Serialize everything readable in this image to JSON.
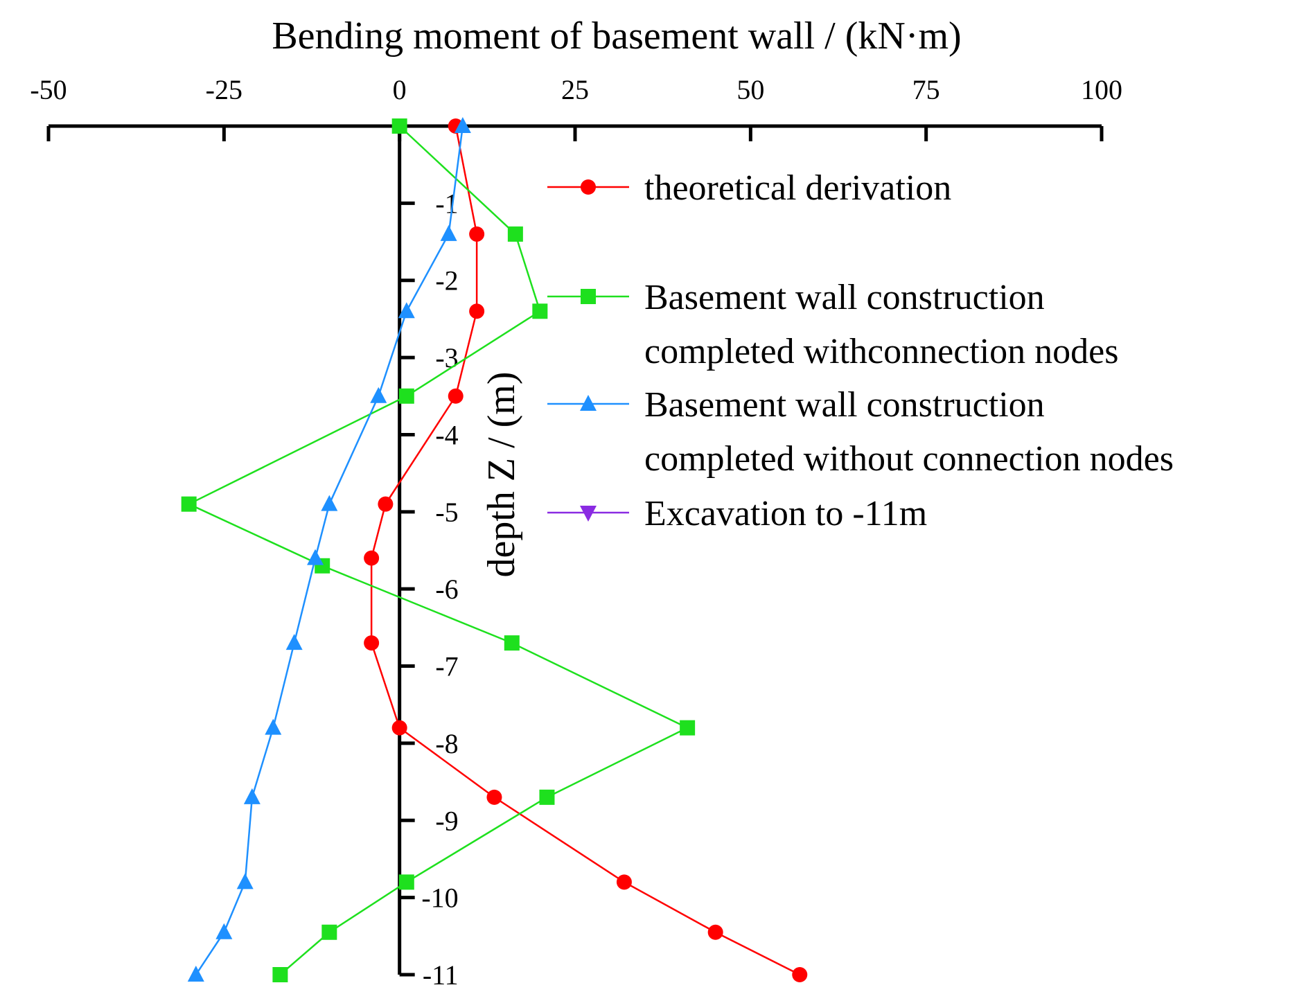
{
  "chart_data": {
    "type": "line",
    "title": "",
    "xlabel": "Bending moment of basement wall / (kN·m)",
    "ylabel": "depth Z / (m)",
    "xlim": [
      -50,
      100
    ],
    "ylim": [
      -11,
      0
    ],
    "x_ticks": [
      "-50",
      "-25",
      "0",
      "25",
      "50",
      "75",
      "100"
    ],
    "x_tick_values": [
      -50,
      -25,
      0,
      25,
      50,
      75,
      100
    ],
    "y_ticks": [
      "-1",
      "-2",
      "-3",
      "-4",
      "-5",
      "-6",
      "-7",
      "-8",
      "-9",
      "-10",
      "-11"
    ],
    "y_tick_values": [
      -1,
      -2,
      -3,
      -4,
      -5,
      -6,
      -7,
      -8,
      -9,
      -10,
      -11
    ],
    "x_axis_position": "top",
    "grid": false,
    "legend_position": "top-right",
    "series": [
      {
        "name": "theoretical derivation",
        "color": "#ff0000",
        "marker": "circle",
        "x": [
          8,
          11,
          11,
          8,
          -2,
          -4,
          -4,
          0,
          13.5,
          32,
          45,
          57
        ],
        "y": [
          0,
          -1.4,
          -2.4,
          -3.5,
          -4.9,
          -5.6,
          -6.7,
          -7.8,
          -8.7,
          -9.8,
          -10.45,
          -11
        ]
      },
      {
        "name": "Basement wall construction completed withconnection nodes",
        "color": "#1ee01e",
        "marker": "square",
        "x": [
          0,
          16.5,
          20,
          1,
          -30,
          -11,
          16,
          41,
          21,
          1,
          -10,
          -17
        ],
        "y": [
          0,
          -1.4,
          -2.4,
          -3.5,
          -4.9,
          -5.7,
          -6.7,
          -7.8,
          -8.7,
          -9.8,
          -10.45,
          -11
        ]
      },
      {
        "name": "Basement wall construction completed without connection nodes",
        "color": "#1e90ff",
        "marker": "triangle-up",
        "x": [
          9,
          7,
          1,
          -3,
          -10,
          -12,
          -15,
          -18,
          -21,
          -22,
          -25,
          -29
        ],
        "y": [
          0,
          -1.4,
          -2.4,
          -3.5,
          -4.9,
          -5.6,
          -6.7,
          -7.8,
          -8.7,
          -9.8,
          -10.45,
          -11
        ]
      },
      {
        "name": "Excavation to -11m",
        "color": "#8a2be2",
        "marker": "triangle-down",
        "x": [],
        "y": []
      }
    ],
    "legend_lines": [
      [
        "theoretical derivation"
      ],
      [
        "Basement wall construction",
        "completed withconnection nodes"
      ],
      [
        "Basement wall construction",
        "completed without connection nodes"
      ],
      [
        "Excavation to -11m"
      ]
    ]
  }
}
